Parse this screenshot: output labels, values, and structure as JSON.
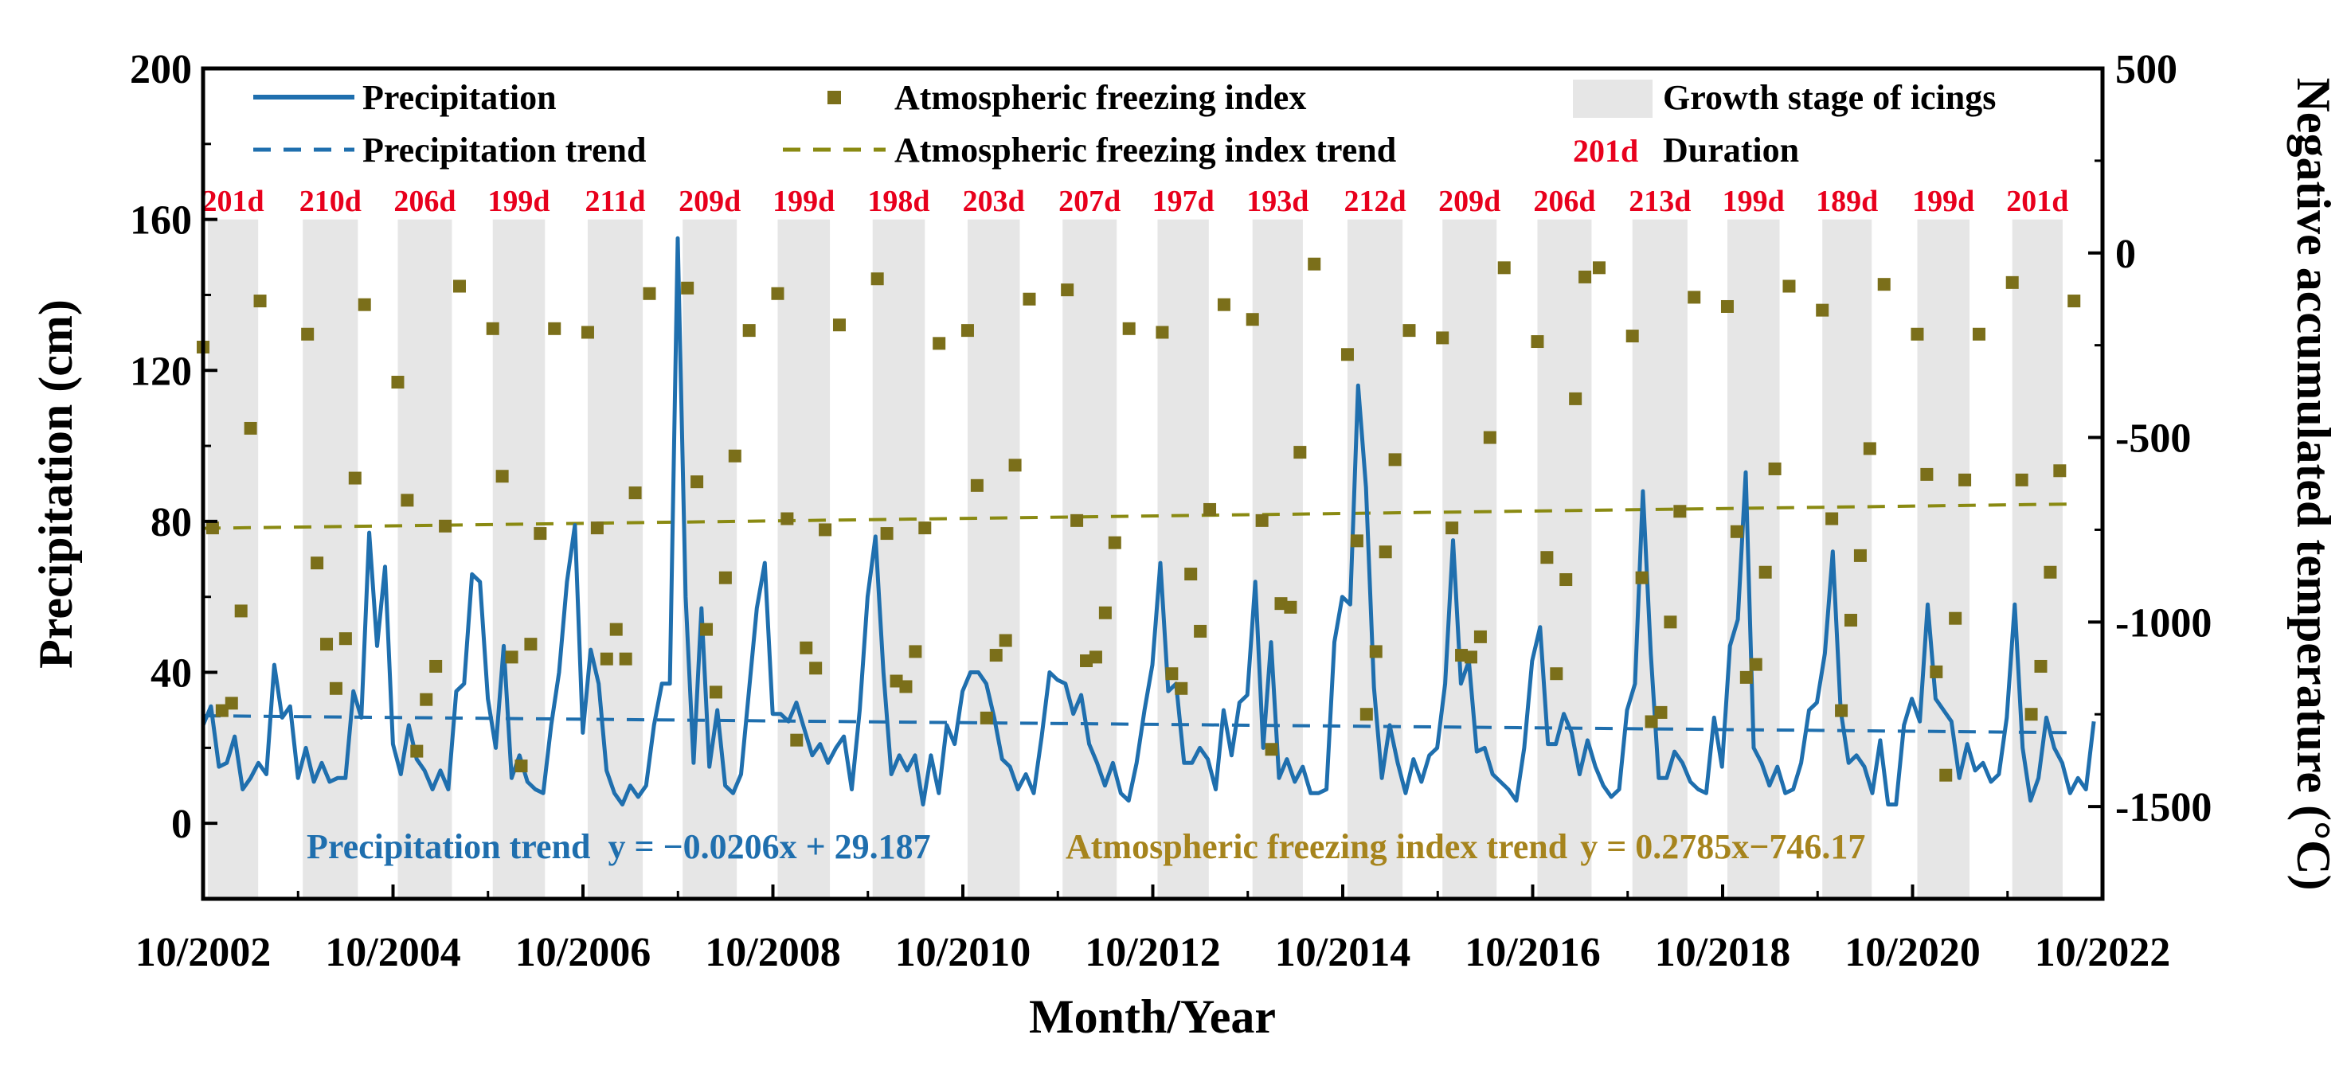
{
  "chart_data": {
    "type": "line",
    "title": "",
    "xlabel": "Month/Year",
    "ylabel": "Precipitation (cm)",
    "y2label": "Negative accumulated temperature (°C)",
    "ylim": [
      -20,
      200
    ],
    "y2lim": [
      -1750,
      500
    ],
    "yticks": [
      0,
      40,
      80,
      120,
      160,
      200
    ],
    "y2ticks": [
      -1500,
      -1000,
      -500,
      0,
      500
    ],
    "xlim": [
      2002.75,
      2022.75
    ],
    "xticks": [
      {
        "value": 2002.75,
        "label": "10/2002"
      },
      {
        "value": 2004.75,
        "label": "10/2004"
      },
      {
        "value": 2006.75,
        "label": "10/2006"
      },
      {
        "value": 2008.75,
        "label": "10/2008"
      },
      {
        "value": 2010.75,
        "label": "10/2010"
      },
      {
        "value": 2012.75,
        "label": "10/2012"
      },
      {
        "value": 2014.75,
        "label": "10/2014"
      },
      {
        "value": 2016.75,
        "label": "10/2016"
      },
      {
        "value": 2018.75,
        "label": "10/2018"
      },
      {
        "value": 2020.75,
        "label": "10/2020"
      },
      {
        "value": 2022.75,
        "label": "10/2022"
      }
    ],
    "legend": {
      "precipitation": "Precipitation",
      "freezing_index": "Atmospheric freezing index",
      "growth_stage": "Growth stage of icings",
      "precipitation_trend": "Precipitation trend",
      "freezing_trend": "Atmospheric freezing index trend",
      "duration_sample": "201d",
      "duration_label": "Duration"
    },
    "growth_stages": [
      {
        "start": 2002.8,
        "end": 2003.33,
        "duration": "201d"
      },
      {
        "start": 2003.8,
        "end": 2004.38,
        "duration": "210d"
      },
      {
        "start": 2004.8,
        "end": 2005.37,
        "duration": "206d"
      },
      {
        "start": 2005.8,
        "end": 2006.35,
        "duration": "199d"
      },
      {
        "start": 2006.8,
        "end": 2007.38,
        "duration": "211d"
      },
      {
        "start": 2007.8,
        "end": 2008.37,
        "duration": "209d"
      },
      {
        "start": 2008.8,
        "end": 2009.35,
        "duration": "199d"
      },
      {
        "start": 2009.8,
        "end": 2010.35,
        "duration": "198d"
      },
      {
        "start": 2010.8,
        "end": 2011.35,
        "duration": "203d"
      },
      {
        "start": 2011.8,
        "end": 2012.37,
        "duration": "207d"
      },
      {
        "start": 2012.8,
        "end": 2013.34,
        "duration": "197d"
      },
      {
        "start": 2013.8,
        "end": 2014.33,
        "duration": "193d"
      },
      {
        "start": 2014.8,
        "end": 2015.38,
        "duration": "212d"
      },
      {
        "start": 2015.8,
        "end": 2016.37,
        "duration": "209d"
      },
      {
        "start": 2016.8,
        "end": 2017.37,
        "duration": "206d"
      },
      {
        "start": 2017.8,
        "end": 2018.38,
        "duration": "213d"
      },
      {
        "start": 2018.8,
        "end": 2019.35,
        "duration": "199d"
      },
      {
        "start": 2019.8,
        "end": 2020.32,
        "duration": "189d"
      },
      {
        "start": 2020.8,
        "end": 2021.35,
        "duration": "199d"
      },
      {
        "start": 2021.8,
        "end": 2022.33,
        "duration": "201d"
      }
    ],
    "precipitation": {
      "name": "Precipitation",
      "start": 2002.75,
      "step": 0.0833,
      "color": "#1f6fae",
      "values": [
        26,
        31,
        15,
        16,
        23,
        9,
        12,
        16,
        13,
        42,
        28,
        31,
        12,
        20,
        11,
        16,
        11,
        12,
        12,
        35,
        28,
        77,
        47,
        68,
        21,
        13,
        26,
        17,
        14,
        9,
        14,
        9,
        35,
        37,
        66,
        64,
        33,
        20,
        47,
        12,
        18,
        11,
        9,
        8,
        26,
        40,
        64,
        79,
        24,
        46,
        37,
        14,
        8,
        5,
        10,
        7,
        10,
        26,
        37,
        37,
        155,
        60,
        16,
        57,
        15,
        30,
        10,
        8,
        13,
        35,
        57,
        69,
        29,
        29,
        27,
        32,
        25,
        18,
        21,
        16,
        20,
        23,
        9,
        30,
        60,
        76,
        40,
        13,
        18,
        14,
        18,
        5,
        18,
        8,
        26,
        21,
        35,
        40,
        40,
        37,
        28,
        17,
        15,
        9,
        13,
        8,
        23,
        40,
        38,
        37,
        29,
        34,
        21,
        16,
        10,
        16,
        8,
        6,
        16,
        30,
        42,
        69,
        35,
        37,
        16,
        16,
        20,
        17,
        9,
        30,
        18,
        32,
        34,
        64,
        20,
        48,
        12,
        17,
        11,
        15,
        8,
        8,
        9,
        48,
        60,
        58,
        116,
        89,
        36,
        12,
        26,
        16,
        8,
        17,
        11,
        18,
        20,
        37,
        75,
        37,
        43,
        19,
        20,
        13,
        11,
        9,
        6,
        20,
        43,
        52,
        21,
        21,
        29,
        24,
        13,
        22,
        15,
        10,
        7,
        9,
        30,
        37,
        88,
        45,
        12,
        12,
        19,
        16,
        11,
        9,
        8,
        28,
        15,
        47,
        54,
        93,
        20,
        16,
        10,
        15,
        8,
        9,
        16,
        30,
        32,
        45,
        72,
        30,
        16,
        18,
        15,
        8,
        22,
        5,
        5,
        26,
        33,
        27,
        58,
        33,
        30,
        27,
        12,
        21,
        14,
        16,
        11,
        13,
        28,
        58,
        20,
        6,
        12,
        28,
        20,
        16,
        8,
        12,
        9,
        27
      ]
    },
    "precipitation_trend": {
      "name": "Precipitation trend",
      "equation": "y = −0.0206x + 29.187",
      "start": 28.5,
      "end": 24.0,
      "color": "#1f6fae"
    },
    "freezing_index": {
      "name": "Atmospheric freezing index",
      "unit": "°C",
      "color": "#7b6f1a",
      "points": [
        [
          2002.75,
          -255
        ],
        [
          2002.85,
          -745
        ],
        [
          2002.95,
          -1240
        ],
        [
          2003.05,
          -1220
        ],
        [
          2003.15,
          -970
        ],
        [
          2003.25,
          -475
        ],
        [
          2003.35,
          -130
        ],
        [
          2003.85,
          -220
        ],
        [
          2003.95,
          -840
        ],
        [
          2004.05,
          -1060
        ],
        [
          2004.15,
          -1180
        ],
        [
          2004.25,
          -1045
        ],
        [
          2004.35,
          -610
        ],
        [
          2004.45,
          -140
        ],
        [
          2004.8,
          -350
        ],
        [
          2004.9,
          -670
        ],
        [
          2005.0,
          -1350
        ],
        [
          2005.1,
          -1210
        ],
        [
          2005.2,
          -1120
        ],
        [
          2005.3,
          -740
        ],
        [
          2005.45,
          -90
        ],
        [
          2005.8,
          -205
        ],
        [
          2005.9,
          -605
        ],
        [
          2006.0,
          -1095
        ],
        [
          2006.1,
          -1390
        ],
        [
          2006.2,
          -1060
        ],
        [
          2006.3,
          -760
        ],
        [
          2006.45,
          -205
        ],
        [
          2006.8,
          -215
        ],
        [
          2006.9,
          -745
        ],
        [
          2007.0,
          -1100
        ],
        [
          2007.1,
          -1020
        ],
        [
          2007.2,
          -1100
        ],
        [
          2007.3,
          -650
        ],
        [
          2007.45,
          -110
        ],
        [
          2007.85,
          -95
        ],
        [
          2007.95,
          -620
        ],
        [
          2008.05,
          -1020
        ],
        [
          2008.15,
          -1190
        ],
        [
          2008.25,
          -880
        ],
        [
          2008.35,
          -550
        ],
        [
          2008.5,
          -210
        ],
        [
          2008.8,
          -110
        ],
        [
          2008.9,
          -720
        ],
        [
          2009.0,
          -1320
        ],
        [
          2009.1,
          -1070
        ],
        [
          2009.2,
          -1125
        ],
        [
          2009.3,
          -750
        ],
        [
          2009.45,
          -195
        ],
        [
          2009.85,
          -70
        ],
        [
          2009.95,
          -760
        ],
        [
          2010.05,
          -1160
        ],
        [
          2010.15,
          -1175
        ],
        [
          2010.25,
          -1080
        ],
        [
          2010.35,
          -745
        ],
        [
          2010.5,
          -245
        ],
        [
          2010.8,
          -210
        ],
        [
          2010.9,
          -630
        ],
        [
          2011.0,
          -1260
        ],
        [
          2011.1,
          -1090
        ],
        [
          2011.2,
          -1050
        ],
        [
          2011.3,
          -575
        ],
        [
          2011.45,
          -125
        ],
        [
          2011.85,
          -100
        ],
        [
          2011.95,
          -725
        ],
        [
          2012.05,
          -1105
        ],
        [
          2012.15,
          -1095
        ],
        [
          2012.25,
          -975
        ],
        [
          2012.35,
          -785
        ],
        [
          2012.5,
          -205
        ],
        [
          2012.85,
          -215
        ],
        [
          2012.95,
          -1140
        ],
        [
          2013.05,
          -1180
        ],
        [
          2013.15,
          -870
        ],
        [
          2013.25,
          -1025
        ],
        [
          2013.35,
          -695
        ],
        [
          2013.5,
          -140
        ],
        [
          2013.8,
          -180
        ],
        [
          2013.9,
          -725
        ],
        [
          2014.0,
          -1345
        ],
        [
          2014.1,
          -950
        ],
        [
          2014.2,
          -960
        ],
        [
          2014.3,
          -540
        ],
        [
          2014.45,
          -30
        ],
        [
          2014.8,
          -275
        ],
        [
          2014.9,
          -780
        ],
        [
          2015.0,
          -1250
        ],
        [
          2015.1,
          -1080
        ],
        [
          2015.2,
          -810
        ],
        [
          2015.3,
          -560
        ],
        [
          2015.45,
          -210
        ],
        [
          2015.8,
          -230
        ],
        [
          2015.9,
          -745
        ],
        [
          2016.0,
          -1090
        ],
        [
          2016.1,
          -1095
        ],
        [
          2016.2,
          -1040
        ],
        [
          2016.3,
          -500
        ],
        [
          2016.45,
          -40
        ],
        [
          2016.8,
          -240
        ],
        [
          2016.9,
          -825
        ],
        [
          2017.0,
          -1140
        ],
        [
          2017.1,
          -885
        ],
        [
          2017.2,
          -395
        ],
        [
          2017.3,
          -65
        ],
        [
          2017.45,
          -40
        ],
        [
          2017.8,
          -225
        ],
        [
          2017.9,
          -880
        ],
        [
          2018.0,
          -1270
        ],
        [
          2018.1,
          -1245
        ],
        [
          2018.2,
          -1000
        ],
        [
          2018.3,
          -700
        ],
        [
          2018.45,
          -120
        ],
        [
          2018.8,
          -145
        ],
        [
          2018.9,
          -755
        ],
        [
          2019.0,
          -1150
        ],
        [
          2019.1,
          -1115
        ],
        [
          2019.2,
          -865
        ],
        [
          2019.3,
          -585
        ],
        [
          2019.45,
          -90
        ],
        [
          2019.8,
          -155
        ],
        [
          2019.9,
          -720
        ],
        [
          2020.0,
          -1240
        ],
        [
          2020.1,
          -995
        ],
        [
          2020.2,
          -820
        ],
        [
          2020.3,
          -530
        ],
        [
          2020.45,
          -85
        ],
        [
          2020.8,
          -220
        ],
        [
          2020.9,
          -600
        ],
        [
          2021.0,
          -1135
        ],
        [
          2021.1,
          -1415
        ],
        [
          2021.2,
          -990
        ],
        [
          2021.3,
          -615
        ],
        [
          2021.45,
          -220
        ],
        [
          2021.8,
          -80
        ],
        [
          2021.9,
          -615
        ],
        [
          2022.0,
          -1250
        ],
        [
          2022.1,
          -1120
        ],
        [
          2022.2,
          -865
        ],
        [
          2022.3,
          -590
        ],
        [
          2022.45,
          -130
        ]
      ]
    },
    "freezing_trend": {
      "name": "Atmospheric freezing index trend",
      "equation": "y = 0.2785x−746.17",
      "start": -746,
      "end": -680,
      "color": "#8a8a12"
    }
  },
  "text": {
    "eq_precip_name": "Precipitation trend",
    "eq_precip_formula": "y = −0.0206x + 29.187",
    "eq_freezing_name": "Atmospheric freezing index trend",
    "eq_freezing_formula": "y = 0.2785x−746.17"
  }
}
